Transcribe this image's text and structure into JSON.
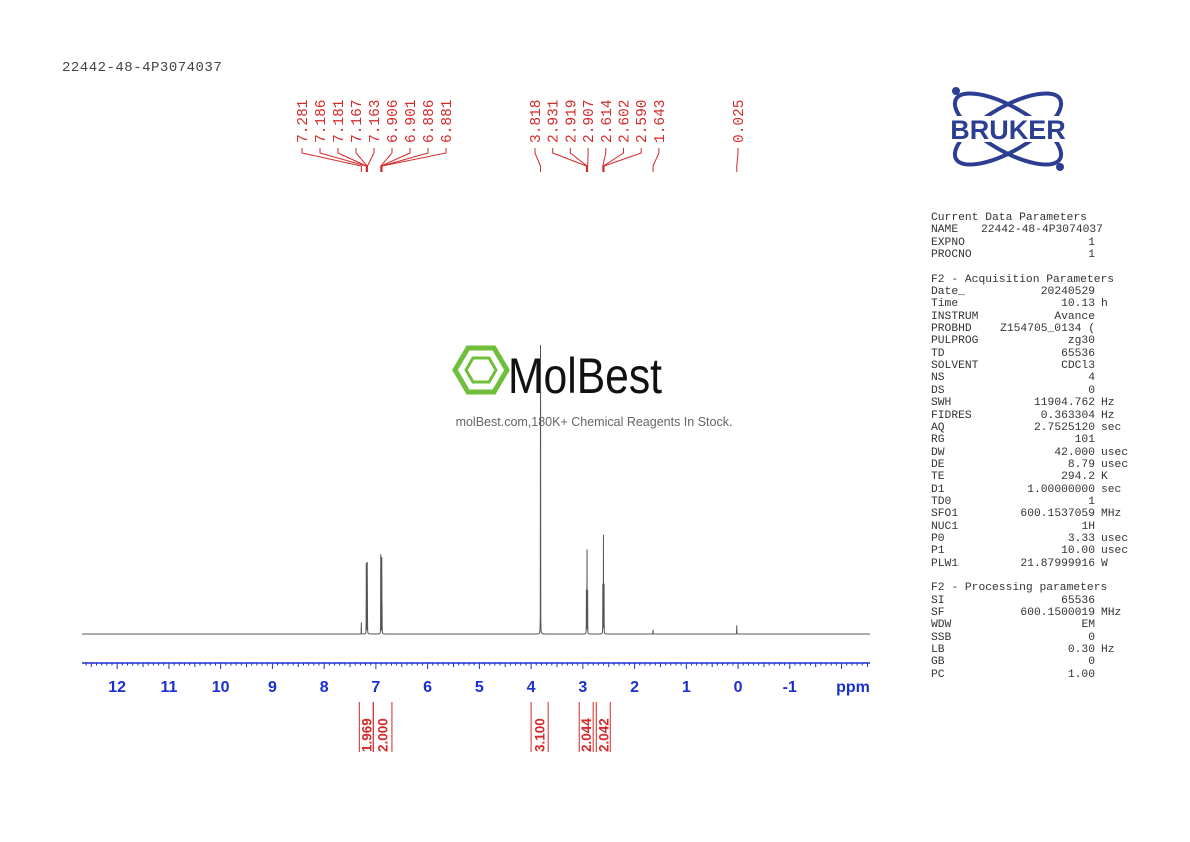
{
  "title": "22442-48-4P3074037",
  "watermark": {
    "brand": "MolBest",
    "tagline": "molBest.com,180K+ Chemical Reagents In Stock.",
    "color": "#6fbf3a"
  },
  "logo": {
    "text": "BRUKER",
    "color": "#2b3e91"
  },
  "parameters": {
    "sections": [
      {
        "heading": "Current Data Parameters",
        "rows": [
          {
            "k": "NAME",
            "v": "22442-48-4P3074037",
            "u": ""
          },
          {
            "k": "EXPNO",
            "v": "1",
            "u": ""
          },
          {
            "k": "PROCNO",
            "v": "1",
            "u": ""
          }
        ]
      },
      {
        "heading": "F2 - Acquisition Parameters",
        "rows": [
          {
            "k": "Date_",
            "v": "20240529",
            "u": ""
          },
          {
            "k": "Time",
            "v": "10.13",
            "u": "h"
          },
          {
            "k": "INSTRUM",
            "v": "Avance",
            "u": ""
          },
          {
            "k": "PROBHD",
            "v": "Z154705_0134 (",
            "u": ""
          },
          {
            "k": "PULPROG",
            "v": "zg30",
            "u": ""
          },
          {
            "k": "TD",
            "v": "65536",
            "u": ""
          },
          {
            "k": "SOLVENT",
            "v": "CDCl3",
            "u": ""
          },
          {
            "k": "NS",
            "v": "4",
            "u": ""
          },
          {
            "k": "DS",
            "v": "0",
            "u": ""
          },
          {
            "k": "SWH",
            "v": "11904.762",
            "u": "Hz"
          },
          {
            "k": "FIDRES",
            "v": "0.363304",
            "u": "Hz"
          },
          {
            "k": "AQ",
            "v": "2.7525120",
            "u": "sec"
          },
          {
            "k": "RG",
            "v": "101",
            "u": ""
          },
          {
            "k": "DW",
            "v": "42.000",
            "u": "usec"
          },
          {
            "k": "DE",
            "v": "8.79",
            "u": "usec"
          },
          {
            "k": "TE",
            "v": "294.2",
            "u": "K"
          },
          {
            "k": "D1",
            "v": "1.00000000",
            "u": "sec"
          },
          {
            "k": "TD0",
            "v": "1",
            "u": ""
          },
          {
            "k": "SFO1",
            "v": "600.1537059",
            "u": "MHz"
          },
          {
            "k": "NUC1",
            "v": "1H",
            "u": ""
          },
          {
            "k": "P0",
            "v": "3.33",
            "u": "usec"
          },
          {
            "k": "P1",
            "v": "10.00",
            "u": "usec"
          },
          {
            "k": "PLW1",
            "v": "21.87999916",
            "u": "W"
          }
        ]
      },
      {
        "heading": "F2 - Processing parameters",
        "rows": [
          {
            "k": "SI",
            "v": "65536",
            "u": ""
          },
          {
            "k": "SF",
            "v": "600.1500019",
            "u": "MHz"
          },
          {
            "k": "WDW",
            "v": "EM",
            "u": ""
          },
          {
            "k": "SSB",
            "v": "0",
            "u": ""
          },
          {
            "k": "LB",
            "v": "0.30",
            "u": "Hz"
          },
          {
            "k": "GB",
            "v": "0",
            "u": ""
          },
          {
            "k": "PC",
            "v": "1.00",
            "u": ""
          }
        ]
      }
    ]
  },
  "chart_data": {
    "type": "line",
    "xlabel": "ppm",
    "xlim": [
      12.68,
      -2.55
    ],
    "x_reversed": true,
    "x_ticks": [
      "12",
      "11",
      "10",
      "9",
      "8",
      "7",
      "6",
      "5",
      "4",
      "3",
      "2",
      "1",
      "0",
      "-1"
    ],
    "x_tick_values": [
      12,
      11,
      10,
      9,
      8,
      7,
      6,
      5,
      4,
      3,
      2,
      1,
      0,
      -1
    ],
    "grid": false,
    "colors": {
      "spectrum": "#555555",
      "axis": "#1a2fd0",
      "annotation": "#d42a2a"
    },
    "peak_label_groups": [
      [
        "7.281",
        "7.186",
        "7.181",
        "7.167",
        "7.163",
        "6.906",
        "6.901",
        "6.886",
        "6.881"
      ],
      [
        "3.818",
        "2.931",
        "2.919",
        "2.907",
        "2.614",
        "2.602",
        "2.590",
        "1.643"
      ],
      [
        "0.025"
      ]
    ],
    "peaks": [
      {
        "ppm": 7.281,
        "intensity": 4
      },
      {
        "ppm": 7.186,
        "intensity": 24
      },
      {
        "ppm": 7.181,
        "intensity": 9
      },
      {
        "ppm": 7.167,
        "intensity": 24
      },
      {
        "ppm": 7.163,
        "intensity": 9
      },
      {
        "ppm": 6.906,
        "intensity": 27
      },
      {
        "ppm": 6.901,
        "intensity": 9
      },
      {
        "ppm": 6.886,
        "intensity": 26
      },
      {
        "ppm": 6.881,
        "intensity": 9
      },
      {
        "ppm": 3.818,
        "intensity": 100
      },
      {
        "ppm": 2.931,
        "intensity": 15
      },
      {
        "ppm": 2.919,
        "intensity": 29
      },
      {
        "ppm": 2.907,
        "intensity": 15
      },
      {
        "ppm": 2.614,
        "intensity": 17
      },
      {
        "ppm": 2.602,
        "intensity": 34
      },
      {
        "ppm": 2.59,
        "intensity": 17
      },
      {
        "ppm": 1.643,
        "intensity": 1.5
      },
      {
        "ppm": 0.025,
        "intensity": 3
      }
    ],
    "integrals": [
      {
        "from": 7.32,
        "to": 7.05,
        "value": "1.969"
      },
      {
        "from": 7.05,
        "to": 6.69,
        "value": "2.000"
      },
      {
        "from": 4.0,
        "to": 3.67,
        "value": "3.100"
      },
      {
        "from": 3.07,
        "to": 2.8,
        "value": "2.044"
      },
      {
        "from": 2.74,
        "to": 2.47,
        "value": "2.042"
      }
    ]
  }
}
